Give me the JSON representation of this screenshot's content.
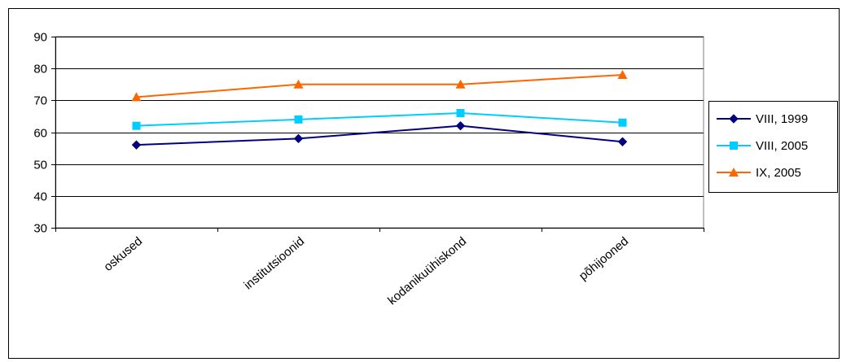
{
  "chart_data": {
    "type": "line",
    "title": "",
    "xlabel": "",
    "ylabel": "",
    "categories": [
      "oskused",
      "institutsioonid",
      "kodanikuühiskond",
      "põhijooned"
    ],
    "ylim": [
      30,
      90
    ],
    "yticks": [
      "30",
      "40",
      "50",
      "60",
      "70",
      "80",
      "90"
    ],
    "grid": true,
    "legend_position": "right",
    "series": [
      {
        "name": "VIII, 1999",
        "values": [
          56,
          58,
          62,
          57
        ],
        "color": "#000080",
        "marker": "diamond"
      },
      {
        "name": "VIII, 2005",
        "values": [
          62,
          64,
          66,
          63
        ],
        "color": "#00ccff",
        "marker": "square"
      },
      {
        "name": "IX, 2005",
        "values": [
          71,
          75,
          75,
          78
        ],
        "color": "#ff6600",
        "marker": "triangle"
      }
    ]
  }
}
